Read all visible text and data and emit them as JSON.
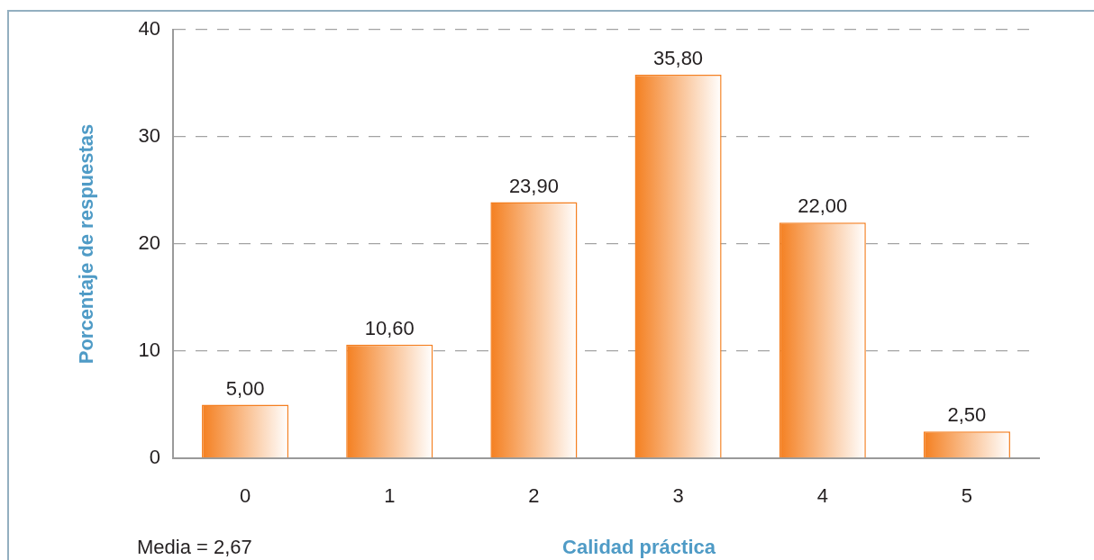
{
  "chart_data": {
    "type": "bar",
    "categories": [
      "0",
      "1",
      "2",
      "3",
      "4",
      "5"
    ],
    "values": [
      5.0,
      10.6,
      23.9,
      35.8,
      22.0,
      2.5
    ],
    "value_labels": [
      "5,00",
      "10,60",
      "23,90",
      "35,80",
      "22,00",
      "2,50"
    ],
    "color": "#f47f20",
    "xlabel": "Calidad práctica",
    "ylabel": "Porcentaje de respuestas",
    "ylim": [
      0,
      40
    ],
    "yticks": [
      0,
      10,
      20,
      30,
      40
    ],
    "grid": "y",
    "annotations": [
      "Media = 2,67"
    ]
  }
}
